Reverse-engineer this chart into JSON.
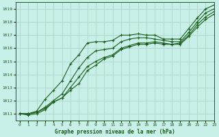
{
  "title": "Graphe pression niveau de la mer (hPa)",
  "bg_color": "#c8f0e8",
  "grid_color": "#b0d8cc",
  "line_color": "#1a5c1a",
  "xlim": [
    -0.5,
    23
  ],
  "ylim": [
    1010.5,
    1019.5
  ],
  "yticks": [
    1011,
    1012,
    1013,
    1014,
    1015,
    1016,
    1017,
    1018,
    1019
  ],
  "xticks": [
    0,
    1,
    2,
    3,
    4,
    5,
    6,
    7,
    8,
    9,
    10,
    11,
    12,
    13,
    14,
    15,
    16,
    17,
    18,
    19,
    20,
    21,
    22,
    23
  ],
  "series": [
    [
      1011.0,
      1011.0,
      1011.2,
      1012.1,
      1012.8,
      1013.5,
      1014.8,
      1015.5,
      1016.4,
      1016.5,
      1016.5,
      1016.6,
      1017.0,
      1017.0,
      1017.1,
      1017.0,
      1017.0,
      1016.7,
      1016.7,
      1016.7,
      1017.5,
      1018.3,
      1019.0,
      1019.3
    ],
    [
      1011.0,
      1011.0,
      1011.1,
      1011.5,
      1012.0,
      1012.5,
      1013.5,
      1014.5,
      1015.3,
      1015.8,
      1015.9,
      1016.0,
      1016.5,
      1016.7,
      1016.8,
      1016.8,
      1016.7,
      1016.6,
      1016.5,
      1016.5,
      1017.2,
      1018.0,
      1018.7,
      1019.0
    ],
    [
      1011.0,
      1011.0,
      1011.1,
      1011.4,
      1011.9,
      1012.2,
      1013.0,
      1013.8,
      1014.6,
      1015.0,
      1015.3,
      1015.5,
      1016.0,
      1016.2,
      1016.4,
      1016.4,
      1016.5,
      1016.4,
      1016.3,
      1016.4,
      1017.0,
      1017.8,
      1018.4,
      1018.8
    ],
    [
      1011.0,
      1010.9,
      1011.0,
      1011.3,
      1011.9,
      1012.2,
      1012.8,
      1013.3,
      1014.3,
      1014.7,
      1015.2,
      1015.4,
      1015.9,
      1016.1,
      1016.3,
      1016.3,
      1016.4,
      1016.3,
      1016.3,
      1016.3,
      1016.9,
      1017.6,
      1018.2,
      1018.6
    ]
  ]
}
